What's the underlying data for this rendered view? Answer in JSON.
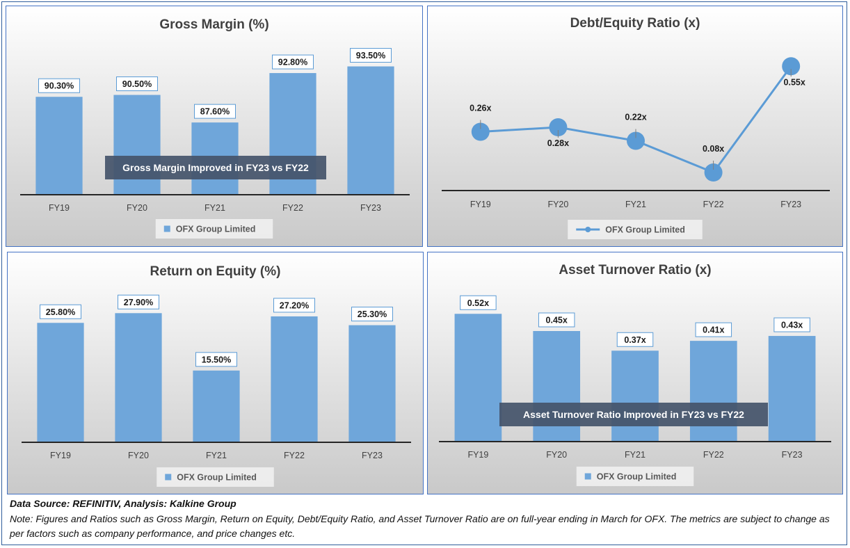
{
  "charts": [
    {
      "id": "gross-margin",
      "chart_data": {
        "type": "bar",
        "title": "Gross Margin (%)",
        "categories": [
          "FY19",
          "FY20",
          "FY21",
          "FY22",
          "FY23"
        ],
        "series": [
          {
            "name": "OFX Group Limited",
            "values": [
              90.3,
              90.5,
              87.6,
              92.8,
              93.5
            ]
          }
        ],
        "data_labels": [
          "90.30%",
          "90.50%",
          "87.60%",
          "92.80%",
          "93.50%"
        ],
        "ylim": [
          80,
          95
        ],
        "annotation": "Gross Margin Improved in FY23 vs FY22",
        "legend_position": "bottom",
        "grid": false
      }
    },
    {
      "id": "debt-equity",
      "chart_data": {
        "type": "line",
        "title": "Debt/Equity Ratio (x)",
        "categories": [
          "FY19",
          "FY20",
          "FY21",
          "FY22",
          "FY23"
        ],
        "series": [
          {
            "name": "OFX Group Limited",
            "values": [
              0.26,
              0.28,
              0.22,
              0.08,
              0.55
            ]
          }
        ],
        "data_labels": [
          "0.26x",
          "0.28x",
          "0.22x",
          "0.08x",
          "0.55x"
        ],
        "ylim": [
          0,
          0.6
        ],
        "legend_position": "bottom",
        "grid": false
      }
    },
    {
      "id": "roe",
      "chart_data": {
        "type": "bar",
        "title": "Return on Equity (%)",
        "categories": [
          "FY19",
          "FY20",
          "FY21",
          "FY22",
          "FY23"
        ],
        "series": [
          {
            "name": "OFX Group Limited",
            "values": [
              25.8,
              27.9,
              15.5,
              27.2,
              25.3
            ]
          }
        ],
        "data_labels": [
          "25.80%",
          "27.90%",
          "15.50%",
          "27.20%",
          "25.30%"
        ],
        "ylim": [
          0,
          32
        ],
        "legend_position": "bottom",
        "grid": false
      }
    },
    {
      "id": "asset-turnover",
      "chart_data": {
        "type": "bar",
        "title": "Asset Turnover Ratio (x)",
        "categories": [
          "FY19",
          "FY20",
          "FY21",
          "FY22",
          "FY23"
        ],
        "series": [
          {
            "name": "OFX Group Limited",
            "values": [
              0.52,
              0.45,
              0.37,
              0.41,
              0.43
            ]
          }
        ],
        "data_labels": [
          "0.52x",
          "0.45x",
          "0.37x",
          "0.41x",
          "0.43x"
        ],
        "ylim": [
          0,
          0.6
        ],
        "annotation": "Asset Turnover Ratio Improved in FY23 vs FY22",
        "legend_position": "bottom",
        "grid": false
      }
    }
  ],
  "colors": {
    "bar": "#6fa6da",
    "line": "#5b9bd5",
    "axis": "#262626",
    "annotation_bg": "#44546a",
    "panel_border": "#4472c4"
  },
  "footer": {
    "source": "Data Source: REFINITIV, Analysis: Kalkine Group",
    "note": "Note: Figures and Ratios such as Gross Margin, Return on Equity, Debt/Equity Ratio, and Asset Turnover Ratio are on full-year ending in March for OFX. The metrics are subject to change as per factors such as company performance, and price changes etc."
  }
}
